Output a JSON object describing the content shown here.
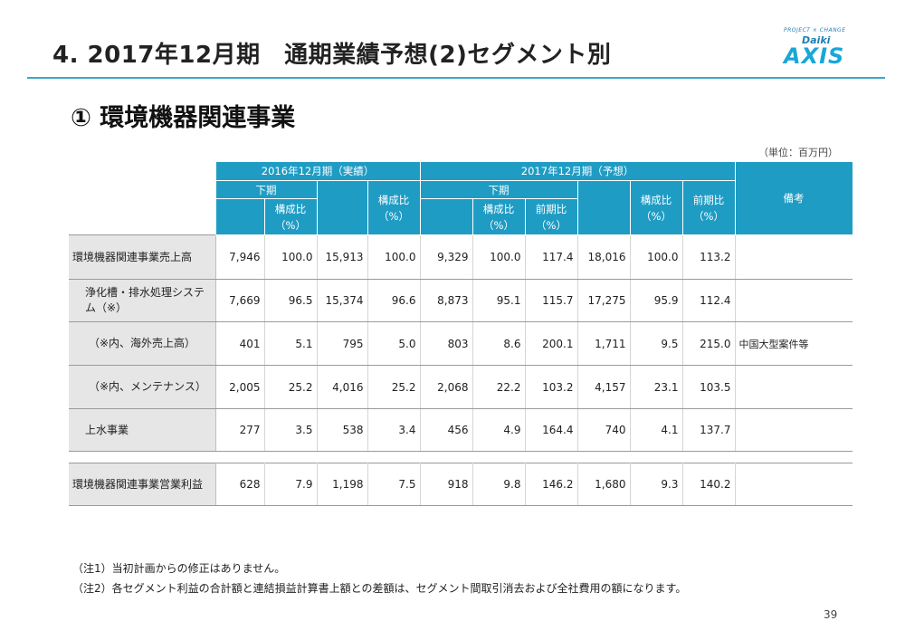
{
  "slide": {
    "title": "4. 2017年12月期　通期業績予想(2)セグメント別",
    "section_title": "① 環境機器関連事業",
    "unit_note": "（単位：百万円）",
    "page_number": "39"
  },
  "logo": {
    "tagline": "PROJECT × CHANGE",
    "brand_top": "Daiki",
    "brand_main": "AXIS"
  },
  "table": {
    "header": {
      "group_2016": "2016年12月期（実績）",
      "group_2017": "2017年12月期（予想）",
      "sub_2016_h2": "下期",
      "sub_2017_h2": "下期",
      "ratio": "構成比",
      "yoy": "前期比",
      "pct": "（%）",
      "remarks": "備考"
    },
    "rows": [
      {
        "label": "環境機器関連事業売上高",
        "values": [
          "7,946",
          "100.0",
          "15,913",
          "100.0",
          "9,329",
          "100.0",
          "117.4",
          "18,016",
          "100.0",
          "113.2"
        ],
        "remark": ""
      },
      {
        "label": "浄化槽・排水処理システム（※）",
        "values": [
          "7,669",
          "96.5",
          "15,374",
          "96.6",
          "8,873",
          "95.1",
          "115.7",
          "17,275",
          "95.9",
          "112.4"
        ],
        "remark": ""
      },
      {
        "label": "（※内、海外売上高）",
        "values": [
          "401",
          "5.1",
          "795",
          "5.0",
          "803",
          "8.6",
          "200.1",
          "1,711",
          "9.5",
          "215.0"
        ],
        "remark": "中国大型案件等"
      },
      {
        "label": "（※内、メンテナンス）",
        "values": [
          "2,005",
          "25.2",
          "4,016",
          "25.2",
          "2,068",
          "22.2",
          "103.2",
          "4,157",
          "23.1",
          "103.5"
        ],
        "remark": ""
      },
      {
        "label": "上水事業",
        "values": [
          "277",
          "3.5",
          "538",
          "3.4",
          "456",
          "4.9",
          "164.4",
          "740",
          "4.1",
          "137.7"
        ],
        "remark": ""
      },
      {
        "label": "環境機器関連事業営業利益",
        "values": [
          "628",
          "7.9",
          "1,198",
          "7.5",
          "918",
          "9.8",
          "146.2",
          "1,680",
          "9.3",
          "140.2"
        ],
        "remark": ""
      }
    ]
  },
  "notes": [
    "（注1）当初計画からの修正はありません。",
    "（注2）各セグメント利益の合計額と連結損益計算書上額との差額は、セグメント間取引消去および全社費用の額になります。"
  ]
}
